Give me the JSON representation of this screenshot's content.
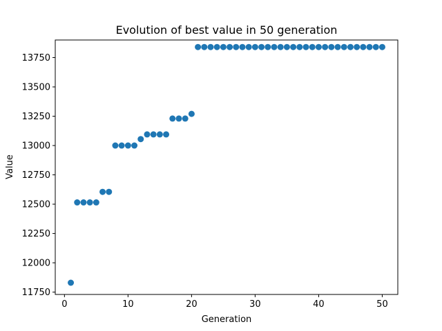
{
  "chart_data": {
    "type": "scatter",
    "title": "Evolution of best value in 50 generation",
    "xlabel": "Generation",
    "ylabel": "Value",
    "xlim": [
      -1.45,
      52.45
    ],
    "ylim": [
      11730,
      13900
    ],
    "xticks": [
      0,
      10,
      20,
      30,
      40,
      50
    ],
    "yticks": [
      11750,
      12000,
      12250,
      12500,
      12750,
      13000,
      13250,
      13500,
      13750
    ],
    "grid": false,
    "marker_color": "#1f77b4",
    "x": [
      1,
      2,
      3,
      4,
      5,
      6,
      7,
      8,
      9,
      10,
      11,
      12,
      13,
      14,
      15,
      16,
      17,
      18,
      19,
      20,
      21,
      22,
      23,
      24,
      25,
      26,
      27,
      28,
      29,
      30,
      31,
      32,
      33,
      34,
      35,
      36,
      37,
      38,
      39,
      40,
      41,
      42,
      43,
      44,
      45,
      46,
      47,
      48,
      49,
      50
    ],
    "y": [
      11830,
      12515,
      12515,
      12515,
      12515,
      12605,
      12605,
      13000,
      13000,
      13000,
      13000,
      13055,
      13095,
      13095,
      13095,
      13095,
      13230,
      13230,
      13230,
      13270,
      13840,
      13840,
      13840,
      13840,
      13840,
      13840,
      13840,
      13840,
      13840,
      13840,
      13840,
      13840,
      13840,
      13840,
      13840,
      13840,
      13840,
      13840,
      13840,
      13840,
      13840,
      13840,
      13840,
      13840,
      13840,
      13840,
      13840,
      13840,
      13840,
      13840
    ]
  }
}
